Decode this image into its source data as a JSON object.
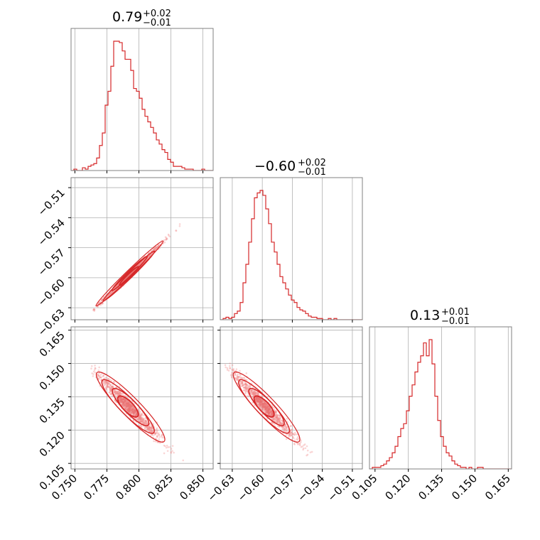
{
  "colors": {
    "line": "#d62728",
    "scatter": "#f08a8a",
    "grid": "#b0b0b0",
    "frame": "#808080"
  },
  "chart_data": {
    "type": "corner",
    "grid": true,
    "parameters": [
      {
        "title": {
          "value": "0.79",
          "upper": "+0.02",
          "lower": "−0.01"
        },
        "range": [
          0.747,
          0.858
        ],
        "ticks": [
          0.75,
          0.775,
          0.8,
          0.825,
          0.85
        ],
        "tick_labels": [
          "0.750",
          "0.775",
          "0.800",
          "0.825",
          "0.850"
        ]
      },
      {
        "title": {
          "value": "−0.60",
          "upper": "+0.02",
          "lower": "−0.01"
        },
        "range": [
          -0.642,
          -0.5
        ],
        "ticks": [
          -0.63,
          -0.6,
          -0.57,
          -0.54,
          -0.51
        ],
        "tick_labels": [
          "−0.63",
          "−0.60",
          "−0.57",
          "−0.54",
          "−0.51"
        ]
      },
      {
        "title": {
          "value": "0.13",
          "upper": "+0.01",
          "lower": "−0.01"
        },
        "range": [
          0.1025,
          0.1665
        ],
        "ticks": [
          0.105,
          0.12,
          0.135,
          0.15,
          0.165
        ],
        "tick_labels": [
          "0.105",
          "0.120",
          "0.135",
          "0.150",
          "0.165"
        ]
      }
    ],
    "histograms": [
      {
        "param": 0,
        "bin_start": 0.747,
        "bin_width": 0.00222,
        "counts": [
          0,
          1,
          0,
          0,
          2,
          1,
          3,
          4,
          5,
          9,
          18,
          27,
          47,
          57,
          75,
          93,
          93,
          92,
          86,
          80,
          80,
          72,
          59,
          57,
          52,
          44,
          39,
          35,
          31,
          27,
          22,
          19,
          15,
          13,
          8,
          6,
          3,
          3,
          3,
          2,
          1,
          1,
          1,
          0,
          0,
          0,
          1,
          0,
          0,
          0
        ]
      },
      {
        "param": 1,
        "bin_start": -0.642,
        "bin_width": 0.00284,
        "counts": [
          0,
          1,
          2,
          1,
          2,
          5,
          7,
          14,
          30,
          45,
          63,
          82,
          99,
          103,
          105,
          101,
          90,
          78,
          63,
          55,
          45,
          35,
          30,
          25,
          20,
          16,
          14,
          10,
          8,
          7,
          5,
          3,
          2,
          2,
          1,
          1,
          0,
          0,
          1,
          0,
          1,
          0,
          0,
          0,
          0,
          0,
          0,
          0,
          0,
          0
        ]
      },
      {
        "param": 2,
        "bin_start": 0.1025,
        "bin_width": 0.00128,
        "counts": [
          0,
          1,
          1,
          1,
          2,
          3,
          5,
          7,
          10,
          14,
          20,
          25,
          28,
          36,
          45,
          52,
          60,
          66,
          70,
          78,
          70,
          80,
          65,
          45,
          30,
          20,
          14,
          10,
          8,
          5,
          3,
          2,
          1,
          1,
          0,
          1,
          0,
          0,
          1,
          1,
          0,
          0,
          0,
          0,
          0,
          0,
          0,
          0,
          0,
          0
        ]
      }
    ],
    "scatter": [
      {
        "x_param": 0,
        "y_param": 1,
        "center": [
          0.7925,
          -0.597
        ],
        "x_sd": 0.0125,
        "y_sd": 0.0155,
        "correlation": 0.998,
        "x_range": [
          0.764,
          0.846
        ]
      },
      {
        "x_param": 0,
        "y_param": 2,
        "center": [
          0.7925,
          0.1305
        ],
        "x_sd": 0.0125,
        "y_sd": 0.0075,
        "correlation": -0.985,
        "x_range": [
          0.762,
          0.852
        ]
      },
      {
        "x_param": 1,
        "y_param": 2,
        "center": [
          -0.597,
          0.1305
        ],
        "x_sd": 0.0155,
        "y_sd": 0.0075,
        "correlation": -0.985,
        "x_range": [
          -0.637,
          -0.515
        ]
      }
    ]
  }
}
